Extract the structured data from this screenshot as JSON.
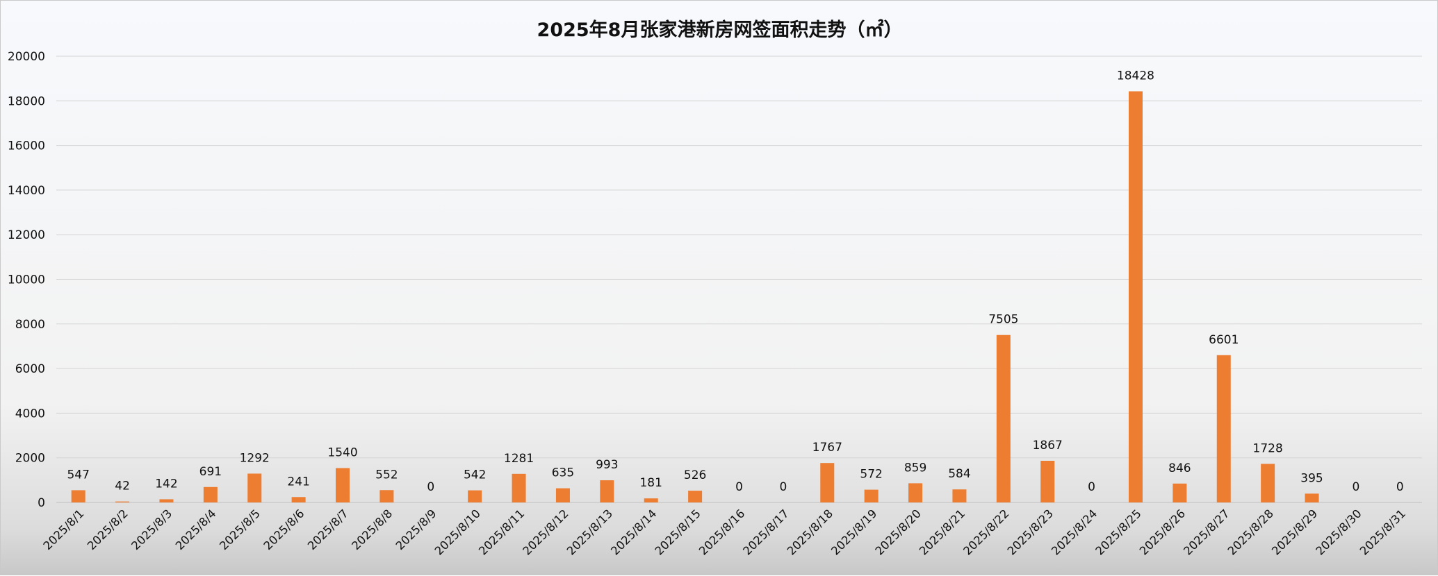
{
  "chart_data": {
    "type": "bar",
    "title": "2025年8月张家港新房网签面积走势（㎡）",
    "xlabel": "",
    "ylabel": "",
    "ylim": [
      0,
      20000
    ],
    "yticks": [
      "0",
      "2000",
      "4000",
      "6000",
      "8000",
      "10000",
      "12000",
      "14000",
      "16000",
      "18000",
      "20000"
    ],
    "grid": true,
    "legend": "none",
    "bar_color": "#ED7D31",
    "categories": [
      "2025/8/1",
      "2025/8/2",
      "2025/8/3",
      "2025/8/4",
      "2025/8/5",
      "2025/8/6",
      "2025/8/7",
      "2025/8/8",
      "2025/8/9",
      "2025/8/10",
      "2025/8/11",
      "2025/8/12",
      "2025/8/13",
      "2025/8/14",
      "2025/8/15",
      "2025/8/16",
      "2025/8/17",
      "2025/8/18",
      "2025/8/19",
      "2025/8/20",
      "2025/8/21",
      "2025/8/22",
      "2025/8/23",
      "2025/8/24",
      "2025/8/25",
      "2025/8/26",
      "2025/8/27",
      "2025/8/28",
      "2025/8/29",
      "2025/8/30",
      "2025/8/31"
    ],
    "values": [
      547,
      42,
      142,
      691,
      1292,
      241,
      1540,
      552,
      0,
      542,
      1281,
      635,
      993,
      181,
      526,
      0,
      0,
      1767,
      572,
      859,
      584,
      7505,
      1867,
      0,
      18428,
      846,
      6601,
      1728,
      395,
      0,
      0
    ]
  }
}
